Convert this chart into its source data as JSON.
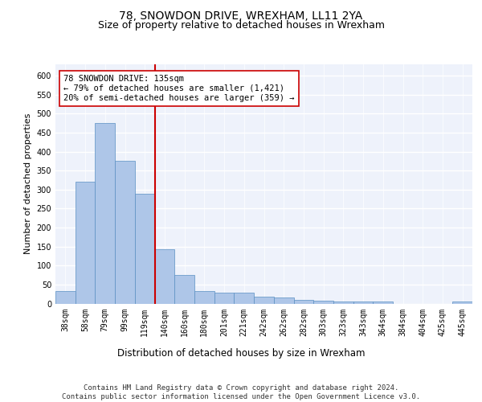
{
  "title1": "78, SNOWDON DRIVE, WREXHAM, LL11 2YA",
  "title2": "Size of property relative to detached houses in Wrexham",
  "xlabel": "Distribution of detached houses by size in Wrexham",
  "ylabel": "Number of detached properties",
  "footer": "Contains HM Land Registry data © Crown copyright and database right 2024.\nContains public sector information licensed under the Open Government Licence v3.0.",
  "bin_labels": [
    "38sqm",
    "58sqm",
    "79sqm",
    "99sqm",
    "119sqm",
    "140sqm",
    "160sqm",
    "180sqm",
    "201sqm",
    "221sqm",
    "242sqm",
    "262sqm",
    "282sqm",
    "303sqm",
    "323sqm",
    "343sqm",
    "364sqm",
    "384sqm",
    "404sqm",
    "425sqm",
    "445sqm"
  ],
  "bar_values": [
    32,
    320,
    475,
    375,
    290,
    143,
    76,
    32,
    29,
    28,
    17,
    16,
    9,
    7,
    5,
    5,
    5,
    0,
    0,
    0,
    5
  ],
  "bar_color": "#aec6e8",
  "bar_edge_color": "#5a8fc2",
  "vline_x_index": 5,
  "vline_color": "#cc0000",
  "annotation_text": "78 SNOWDON DRIVE: 135sqm\n← 79% of detached houses are smaller (1,421)\n20% of semi-detached houses are larger (359) →",
  "annotation_box_color": "#ffffff",
  "annotation_box_edge": "#cc0000",
  "ylim": [
    0,
    630
  ],
  "yticks": [
    0,
    50,
    100,
    150,
    200,
    250,
    300,
    350,
    400,
    450,
    500,
    550,
    600
  ],
  "background_color": "#eef2fb",
  "grid_color": "#ffffff",
  "title1_fontsize": 10,
  "title2_fontsize": 9,
  "xlabel_fontsize": 8.5,
  "ylabel_fontsize": 8,
  "tick_fontsize": 7,
  "annotation_fontsize": 7.5,
  "footer_fontsize": 6.5
}
